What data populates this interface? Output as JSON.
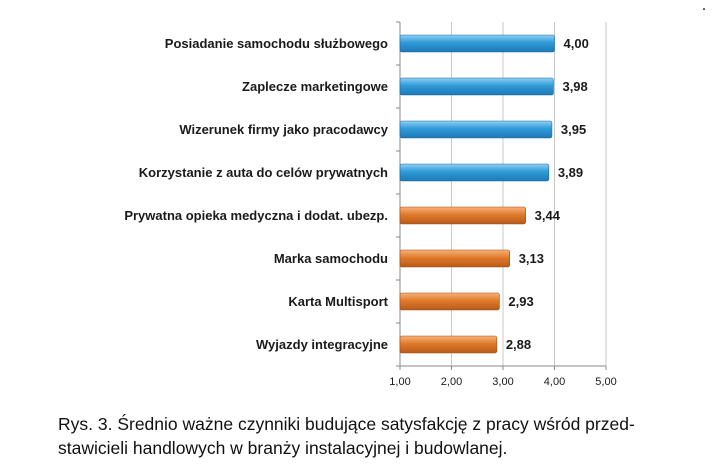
{
  "chart_data": {
    "type": "bar",
    "orientation": "horizontal",
    "categories": [
      "Posiadanie samochodu służbowego",
      "Zaplecze marketingowe",
      "Wizerunek firmy jako pracodawcy",
      "Korzystanie z auta do celów prywatnych",
      "Prywatna opieka medyczna i dodat. ubezp.",
      "Marka samochodu",
      "Karta Multisport",
      "Wyjazdy integracyjne"
    ],
    "values": [
      4.0,
      3.98,
      3.95,
      3.89,
      3.44,
      3.13,
      2.93,
      2.88
    ],
    "value_labels": [
      "4,00",
      "3,98",
      "3,95",
      "3,89",
      "3,44",
      "3,13",
      "2,93",
      "2,88"
    ],
    "groups": [
      "blue",
      "blue",
      "blue",
      "blue",
      "orange",
      "orange",
      "orange",
      "orange"
    ],
    "colors": {
      "blue": "#2f9ad8",
      "orange": "#e07a2c",
      "grid": "#c8c8c8",
      "axis": "#8a8a8a"
    },
    "xlim": [
      1.0,
      5.0
    ],
    "xticks": [
      1,
      2,
      3,
      4,
      5
    ],
    "xtick_labels": [
      "1,00",
      "2,00",
      "3,00",
      "4,00",
      "5,00"
    ],
    "grid": true,
    "legend": "none"
  },
  "caption": {
    "line1": "Rys. 3. Średnio ważne czynniki budujące satysfakcję z pracy wśród przed-",
    "line2": "stawicieli handlowych w branży instalacyjnej i budowlanej."
  }
}
